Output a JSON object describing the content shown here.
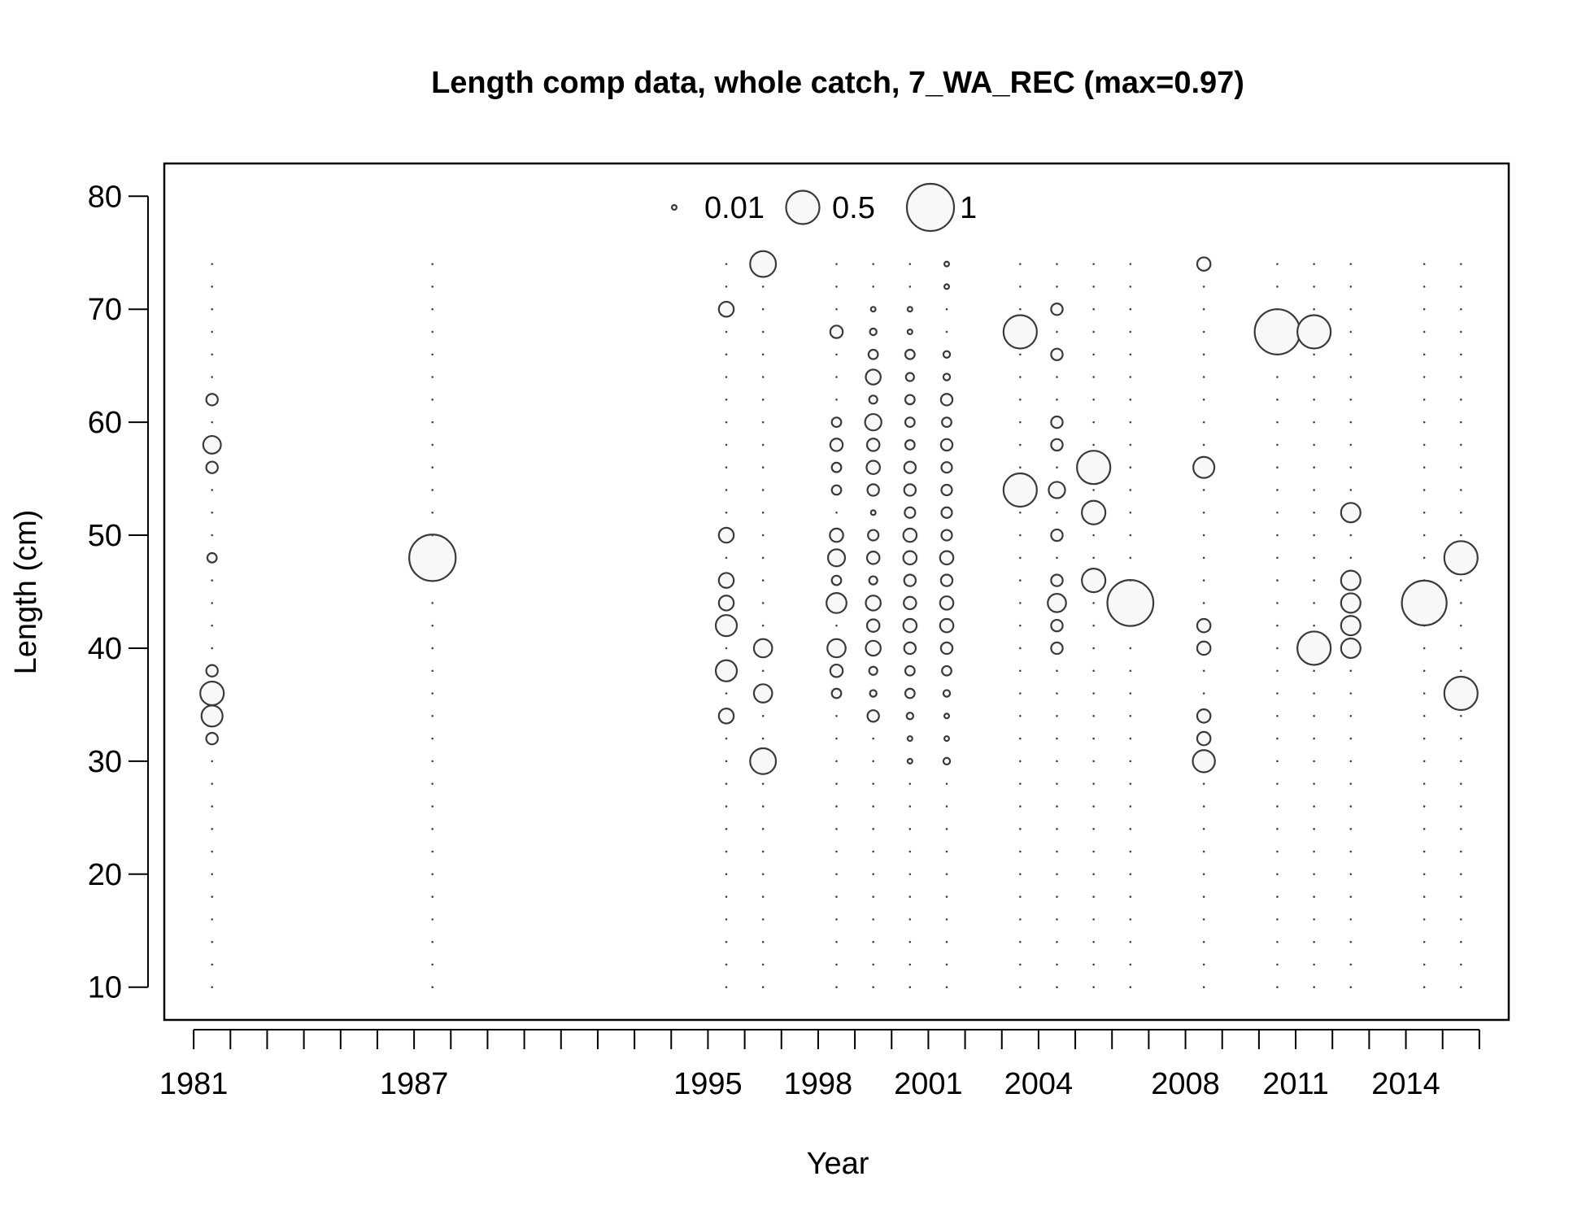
{
  "chart_data": {
    "type": "scatter",
    "subtype": "bubble",
    "title": "Length comp data, whole catch, 7_WA_REC (max=0.97)",
    "xlabel": "Year",
    "ylabel": "Length (cm)",
    "xlim": [
      1980.2,
      2016.8
    ],
    "ylim": [
      7.1,
      82.9
    ],
    "x_ticks": [
      1981,
      1982,
      1983,
      1984,
      1985,
      1986,
      1987,
      1988,
      1989,
      1990,
      1991,
      1992,
      1993,
      1994,
      1995,
      1996,
      1997,
      1998,
      1999,
      2000,
      2001,
      2002,
      2003,
      2004,
      2005,
      2006,
      2007,
      2008,
      2009,
      2010,
      2011,
      2012,
      2013,
      2014,
      2015,
      2016
    ],
    "x_tick_labels": [
      "1981",
      "1987",
      "1995",
      "1998",
      "2001",
      "2004",
      "2008",
      "2011",
      "2014"
    ],
    "y_ticks": [
      10,
      20,
      30,
      40,
      50,
      60,
      70,
      80
    ],
    "y_tick_labels": [
      "10",
      "20",
      "30",
      "40",
      "50",
      "60",
      "70",
      "80"
    ],
    "bin_range": [
      10,
      74
    ],
    "bin_width": 2,
    "bubble_fill": "#f8f8f8",
    "bubble_stroke": "#3a3a3a",
    "legend": {
      "placement": "top-center",
      "items": [
        {
          "label": "0.01",
          "value": 0.01
        },
        {
          "label": "0.5",
          "value": 0.5
        },
        {
          "label": "1",
          "value": 1
        }
      ]
    },
    "years": [
      {
        "year": 1981.5,
        "obs": [
          [
            32,
            0.06
          ],
          [
            34,
            0.2
          ],
          [
            36,
            0.25
          ],
          [
            38,
            0.06
          ],
          [
            48,
            0.04
          ],
          [
            56,
            0.06
          ],
          [
            58,
            0.14
          ],
          [
            62,
            0.06
          ]
        ]
      },
      {
        "year": 1987.5,
        "obs": [
          [
            48,
            0.97
          ]
        ]
      },
      {
        "year": 1995.5,
        "obs": [
          [
            34,
            0.1
          ],
          [
            38,
            0.2
          ],
          [
            42,
            0.2
          ],
          [
            44,
            0.1
          ],
          [
            46,
            0.1
          ],
          [
            50,
            0.1
          ],
          [
            70,
            0.1
          ]
        ]
      },
      {
        "year": 1996.5,
        "obs": [
          [
            30,
            0.3
          ],
          [
            36,
            0.15
          ],
          [
            40,
            0.15
          ],
          [
            74,
            0.3
          ]
        ]
      },
      {
        "year": 1998.5,
        "obs": [
          [
            36,
            0.04
          ],
          [
            38,
            0.07
          ],
          [
            40,
            0.15
          ],
          [
            44,
            0.18
          ],
          [
            46,
            0.04
          ],
          [
            48,
            0.13
          ],
          [
            50,
            0.08
          ],
          [
            54,
            0.04
          ],
          [
            56,
            0.04
          ],
          [
            58,
            0.07
          ],
          [
            60,
            0.04
          ],
          [
            68,
            0.07
          ]
        ]
      },
      {
        "year": 1999.5,
        "obs": [
          [
            34,
            0.06
          ],
          [
            36,
            0.02
          ],
          [
            38,
            0.03
          ],
          [
            40,
            0.1
          ],
          [
            42,
            0.07
          ],
          [
            44,
            0.1
          ],
          [
            46,
            0.03
          ],
          [
            48,
            0.07
          ],
          [
            50,
            0.05
          ],
          [
            52,
            0.01
          ],
          [
            54,
            0.06
          ],
          [
            56,
            0.08
          ],
          [
            58,
            0.07
          ],
          [
            60,
            0.12
          ],
          [
            62,
            0.03
          ],
          [
            64,
            0.1
          ],
          [
            66,
            0.04
          ],
          [
            68,
            0.02
          ],
          [
            70,
            0.01
          ]
        ]
      },
      {
        "year": 2000.5,
        "obs": [
          [
            30,
            0.01
          ],
          [
            32,
            0.01
          ],
          [
            34,
            0.02
          ],
          [
            36,
            0.04
          ],
          [
            38,
            0.04
          ],
          [
            40,
            0.06
          ],
          [
            42,
            0.08
          ],
          [
            44,
            0.07
          ],
          [
            46,
            0.06
          ],
          [
            48,
            0.08
          ],
          [
            50,
            0.08
          ],
          [
            52,
            0.05
          ],
          [
            54,
            0.06
          ],
          [
            56,
            0.06
          ],
          [
            58,
            0.04
          ],
          [
            60,
            0.04
          ],
          [
            62,
            0.04
          ],
          [
            64,
            0.03
          ],
          [
            66,
            0.04
          ],
          [
            68,
            0.01
          ],
          [
            70,
            0.01
          ]
        ]
      },
      {
        "year": 2001.5,
        "obs": [
          [
            30,
            0.02
          ],
          [
            32,
            0.01
          ],
          [
            34,
            0.01
          ],
          [
            36,
            0.02
          ],
          [
            38,
            0.04
          ],
          [
            40,
            0.06
          ],
          [
            42,
            0.08
          ],
          [
            44,
            0.08
          ],
          [
            46,
            0.06
          ],
          [
            48,
            0.08
          ],
          [
            50,
            0.05
          ],
          [
            52,
            0.05
          ],
          [
            54,
            0.05
          ],
          [
            56,
            0.05
          ],
          [
            58,
            0.06
          ],
          [
            60,
            0.04
          ],
          [
            62,
            0.06
          ],
          [
            64,
            0.02
          ],
          [
            66,
            0.02
          ],
          [
            72,
            0.01
          ],
          [
            74,
            0.01
          ]
        ]
      },
      {
        "year": 2003.5,
        "obs": [
          [
            54,
            0.5
          ],
          [
            68,
            0.5
          ]
        ]
      },
      {
        "year": 2004.5,
        "obs": [
          [
            40,
            0.06
          ],
          [
            42,
            0.06
          ],
          [
            44,
            0.15
          ],
          [
            46,
            0.06
          ],
          [
            50,
            0.06
          ],
          [
            54,
            0.12
          ],
          [
            58,
            0.06
          ],
          [
            60,
            0.06
          ],
          [
            66,
            0.06
          ],
          [
            70,
            0.06
          ]
        ]
      },
      {
        "year": 2005.5,
        "obs": [
          [
            46,
            0.25
          ],
          [
            52,
            0.25
          ],
          [
            56,
            0.5
          ]
        ]
      },
      {
        "year": 2006.5,
        "obs": [
          [
            44,
            0.95
          ]
        ]
      },
      {
        "year": 2008.5,
        "obs": [
          [
            30,
            0.22
          ],
          [
            32,
            0.08
          ],
          [
            34,
            0.08
          ],
          [
            40,
            0.08
          ],
          [
            42,
            0.08
          ],
          [
            56,
            0.2
          ],
          [
            74,
            0.08
          ]
        ]
      },
      {
        "year": 2010.5,
        "obs": [
          [
            68,
            0.92
          ]
        ]
      },
      {
        "year": 2011.5,
        "obs": [
          [
            40,
            0.5
          ],
          [
            68,
            0.5
          ]
        ]
      },
      {
        "year": 2012.5,
        "obs": [
          [
            40,
            0.17
          ],
          [
            42,
            0.17
          ],
          [
            44,
            0.17
          ],
          [
            46,
            0.17
          ],
          [
            52,
            0.17
          ]
        ]
      },
      {
        "year": 2014.5,
        "obs": [
          [
            44,
            0.9
          ]
        ]
      },
      {
        "year": 2015.5,
        "obs": [
          [
            36,
            0.5
          ],
          [
            48,
            0.5
          ]
        ]
      }
    ]
  }
}
